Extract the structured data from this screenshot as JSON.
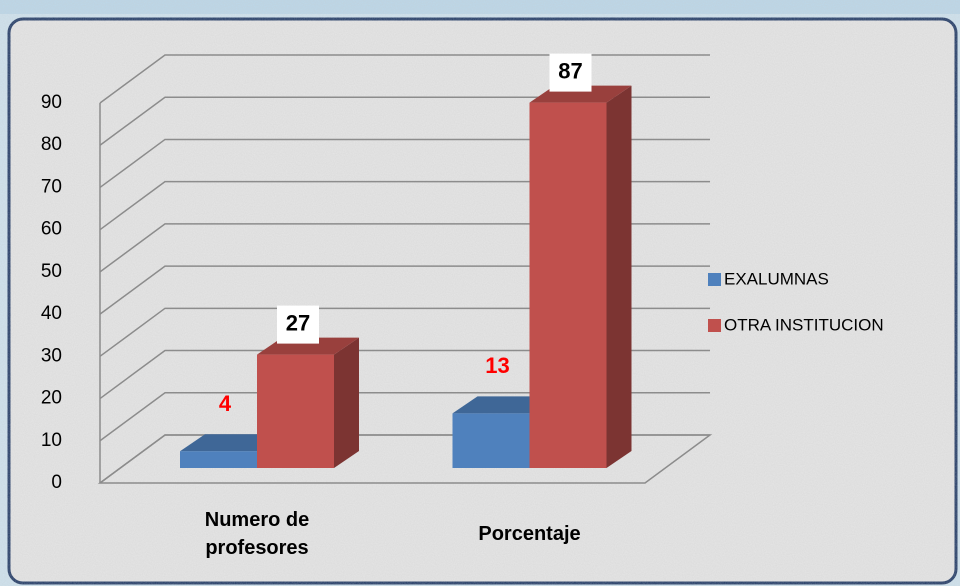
{
  "chart_data": {
    "type": "bar3d",
    "categories": [
      "Numero de profesores",
      "Porcentaje"
    ],
    "series": [
      {
        "name": "EXALUMNAS",
        "color": "#4f81bd",
        "values": [
          4,
          13
        ]
      },
      {
        "name": "OTRA INSTITUCION",
        "color": "#c0504d",
        "values": [
          27,
          87
        ]
      }
    ],
    "ylim": [
      0,
      90
    ],
    "yticks": [
      0,
      10,
      20,
      30,
      40,
      50,
      60,
      70,
      80,
      90
    ],
    "grid": true,
    "legend": "right"
  }
}
